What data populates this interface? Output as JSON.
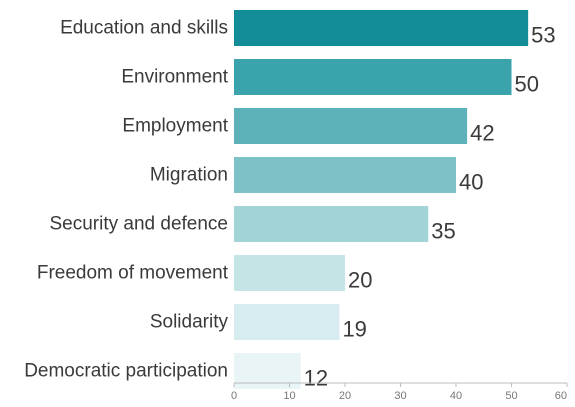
{
  "chart_data": {
    "type": "bar",
    "orientation": "horizontal",
    "categories": [
      "Education and skills",
      "Environment",
      "Employment",
      "Migration",
      "Security and defence",
      "Freedom of movement",
      "Solidarity",
      "Democratic participation"
    ],
    "values": [
      53,
      50,
      42,
      40,
      35,
      20,
      19,
      12
    ],
    "bar_colors": [
      "#128d97",
      "#3aa3ab",
      "#5cb2b8",
      "#7dc2c7",
      "#a2d4d7",
      "#c4e4e6",
      "#d6ecee",
      "#e8f4f5"
    ],
    "xlim": [
      0,
      60
    ],
    "xticks": [
      0,
      10,
      20,
      30,
      40,
      50,
      60
    ],
    "title": "",
    "xlabel": "",
    "ylabel": "",
    "grid": false,
    "legend": "none"
  }
}
